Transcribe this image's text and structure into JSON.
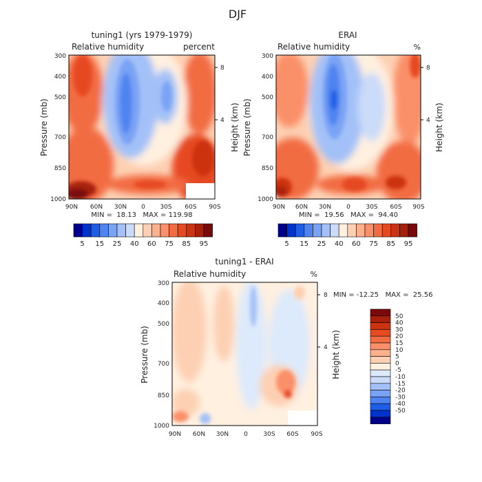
{
  "figure": {
    "title": "DJF"
  },
  "colors": {
    "full_scale": [
      "#00008b",
      "#0033cc",
      "#1e5ee6",
      "#4f84f0",
      "#7aa3f5",
      "#a3c1f8",
      "#cadcf9",
      "#fff0e0",
      "#fdd0b3",
      "#fcb08c",
      "#fa9069",
      "#f26c43",
      "#e64a20",
      "#cc3311",
      "#a8200a",
      "#7a0a0a"
    ],
    "diff_scale": [
      "#00008b",
      "#0033cc",
      "#1e5ee6",
      "#4f84f0",
      "#7aa3f5",
      "#a3c1f8",
      "#cadcf9",
      "#ddeafb",
      "#fff0e0",
      "#fdd0b3",
      "#fcb08c",
      "#fa9069",
      "#f26c43",
      "#e64a20",
      "#cc3311",
      "#a8200a",
      "#7a0a0a"
    ]
  },
  "chart_data": [
    {
      "type": "heatmap",
      "title": "tuning1 (yrs 1979-1979)",
      "subtitle_left": "Relative humidity",
      "subtitle_right": "percent",
      "xlabel": "",
      "ylabel": "Pressure (mb)",
      "y2label": "Height (km)",
      "x_ticks": [
        "90N",
        "60N",
        "30N",
        "0",
        "30S",
        "60S",
        "90S"
      ],
      "y_ticks": [
        "300",
        "400",
        "500",
        "700",
        "850",
        "1000"
      ],
      "y2_ticks": [
        "8",
        "4"
      ],
      "ylim": [
        1000,
        300
      ],
      "stats": {
        "min": "18.13",
        "max": "119.98"
      },
      "stats_text": "MIN =  18.13   MAX = 119.98",
      "colorbar": {
        "orientation": "horizontal",
        "labels": [
          "5",
          "15",
          "25",
          "40",
          "60",
          "75",
          "85",
          "95"
        ],
        "levels": [
          5,
          10,
          15,
          20,
          25,
          30,
          40,
          50,
          60,
          65,
          70,
          75,
          80,
          85,
          90,
          95
        ]
      }
    },
    {
      "type": "heatmap",
      "title": "ERAI",
      "subtitle_left": "Relative humidity",
      "subtitle_right": "%",
      "xlabel": "",
      "ylabel": "Pressure (mb)",
      "y2label": "Height (km)",
      "x_ticks": [
        "90N",
        "60N",
        "30N",
        "0",
        "30S",
        "60S",
        "90S"
      ],
      "y_ticks": [
        "300",
        "400",
        "500",
        "700",
        "850",
        "1000"
      ],
      "y2_ticks": [
        "8",
        "4"
      ],
      "ylim": [
        1000,
        300
      ],
      "stats": {
        "min": "19.56",
        "max": "94.40"
      },
      "stats_text": "MIN =  19.56   MAX =  94.40",
      "colorbar": {
        "orientation": "horizontal",
        "labels": [
          "5",
          "15",
          "25",
          "40",
          "60",
          "75",
          "85",
          "95"
        ],
        "levels": [
          5,
          10,
          15,
          20,
          25,
          30,
          40,
          50,
          60,
          65,
          70,
          75,
          80,
          85,
          90,
          95
        ]
      }
    },
    {
      "type": "heatmap",
      "title": "tuning1 - ERAI",
      "subtitle_left": "Relative humidity",
      "subtitle_right": "%",
      "xlabel": "",
      "ylabel": "Pressure (mb)",
      "y2label": "Height (km)",
      "x_ticks": [
        "90N",
        "60N",
        "30N",
        "0",
        "30S",
        "60S",
        "90S"
      ],
      "y_ticks": [
        "300",
        "400",
        "500",
        "700",
        "850",
        "1000"
      ],
      "y2_ticks": [
        "8",
        "4"
      ],
      "ylim": [
        1000,
        300
      ],
      "stats": {
        "min": "-12.25",
        "max": "25.56"
      },
      "stats_text": "MIN = -12.25   MAX =  25.56",
      "colorbar": {
        "orientation": "vertical",
        "labels": [
          "50",
          "40",
          "30",
          "20",
          "15",
          "10",
          "5",
          "0",
          "-5",
          "-10",
          "-15",
          "-20",
          "-30",
          "-40",
          "-50"
        ],
        "levels": [
          -50,
          -40,
          -30,
          -20,
          -15,
          -10,
          -5,
          0,
          5,
          10,
          15,
          20,
          30,
          40,
          50
        ]
      }
    }
  ]
}
